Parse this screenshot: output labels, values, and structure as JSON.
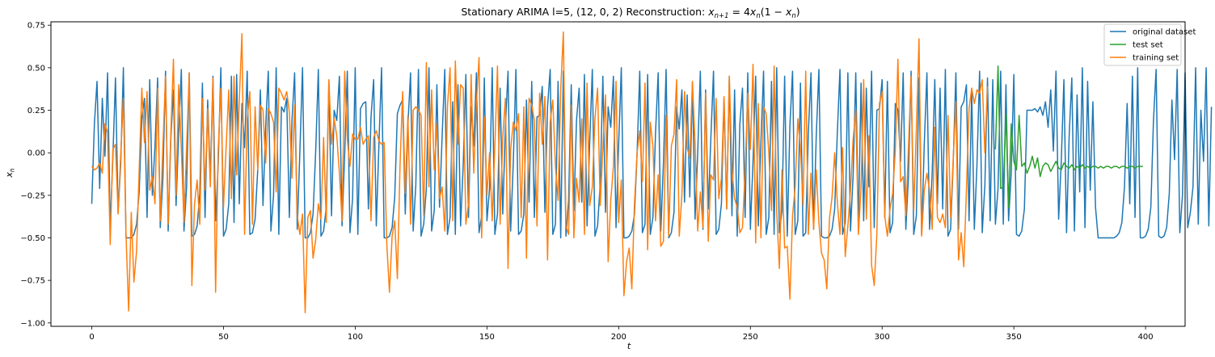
{
  "chart_data": {
    "type": "line",
    "title": "Stationary ARIMA l=5, (12, 0, 2) Reconstruction: x_{n+1} = 4x_n(1 − x_n)",
    "title_parts": {
      "prefix": "Stationary ARIMA l=5, (12, 0, 2) Reconstruction: ",
      "formula_x": "x",
      "formula_sub": "n+1",
      "formula_mid": " = 4",
      "formula_x2": "x",
      "formula_sub2": "n",
      "formula_paren_open": "(1 − ",
      "formula_x3": "x",
      "formula_sub3": "n",
      "formula_paren_close": ")"
    },
    "xlabel": "t",
    "ylabel": "x",
    "ylabel_sub": "n",
    "xlim": [
      -15.5,
      415
    ],
    "ylim": [
      -1.02,
      0.77
    ],
    "xticks": [
      0,
      50,
      100,
      150,
      200,
      250,
      300,
      350,
      400
    ],
    "yticks": [
      -1.0,
      -0.75,
      -0.5,
      -0.25,
      0.0,
      0.25,
      0.5,
      0.75
    ],
    "ytick_labels": [
      "−1.00",
      "−0.75",
      "−0.50",
      "−0.25",
      "0.00",
      "0.25",
      "0.50",
      "0.75"
    ],
    "grid": false,
    "legend_position": "upper right",
    "series": [
      {
        "name": "original dataset",
        "color": "#1f77b4",
        "x_start": 0,
        "values": [
          -0.3,
          0.17,
          0.42,
          -0.21,
          0.32,
          -0.02,
          0.47,
          -0.44,
          -0.03,
          0.44,
          -0.35,
          -0.06,
          0.5,
          -0.5,
          -0.5,
          -0.5,
          -0.48,
          -0.42,
          -0.23,
          0.2,
          0.32,
          -0.38,
          0.43,
          -0.25,
          0.04,
          0.44,
          -0.44,
          -0.15,
          0.48,
          -0.46,
          0.08,
          0.37,
          -0.31,
          0.11,
          0.49,
          -0.46,
          -0.2,
          0.47,
          -0.49,
          -0.48,
          -0.43,
          -0.24,
          0.41,
          -0.38,
          0.31,
          -0.15,
          0.45,
          -0.4,
          -0.06,
          0.5,
          -0.49,
          -0.45,
          -0.3,
          0.45,
          -0.41,
          0.46,
          -0.3,
          0.29,
          0.03,
          0.48,
          -0.48,
          -0.47,
          -0.39,
          -0.1,
          0.37,
          -0.31,
          0.15,
          0.48,
          -0.46,
          -0.25,
          0.5,
          -0.48,
          0.27,
          0.24,
          0.32,
          -0.38,
          0.19,
          0.47,
          -0.45,
          0.01,
          0.5,
          -0.5,
          -0.5,
          -0.47,
          -0.36,
          0.01,
          0.49,
          -0.49,
          -0.46,
          -0.32,
          0.42,
          -0.37,
          0.25,
          0.19,
          0.45,
          -0.43,
          -0.01,
          0.48,
          -0.47,
          -0.27,
          0.5,
          -0.48,
          0.26,
          0.29,
          0.3,
          -0.33,
          0.21,
          0.43,
          -0.43,
          0.05,
          0.5,
          -0.5,
          -0.5,
          -0.49,
          -0.44,
          -0.26,
          0.23,
          0.28,
          0.31,
          -0.36,
          0.16,
          0.47,
          -0.46,
          -0.19,
          0.49,
          -0.49,
          -0.42,
          -0.21,
          0.5,
          -0.46,
          -0.34,
          0.4,
          -0.32,
          0.1,
          0.49,
          -0.48,
          -0.38,
          0.3,
          -0.48,
          0.4,
          -0.43,
          -0.07,
          0.46,
          -0.38,
          0.27,
          0.04,
          0.47,
          -0.47,
          -0.37,
          0.44,
          -0.4,
          -0.21,
          0.5,
          -0.48,
          -0.36,
          0.38,
          -0.36,
          0.15,
          0.48,
          -0.46,
          -0.06,
          0.49,
          -0.48,
          -0.46,
          -0.36,
          0.31,
          -0.29,
          0.42,
          -0.38,
          0.21,
          0.22,
          0.39,
          -0.35,
          0.27,
          0.49,
          -0.48,
          -0.42,
          0.42,
          -0.5,
          0.48,
          -0.49,
          -0.28,
          0.4,
          -0.34,
          0.19,
          0.38,
          -0.29,
          0.46,
          -0.43,
          0.06,
          0.49,
          -0.49,
          -0.43,
          -0.18,
          0.45,
          -0.35,
          0.27,
          0.15,
          0.45,
          -0.44,
          0.05,
          0.5,
          -0.5,
          -0.5,
          -0.49,
          -0.46,
          -0.36,
          0.0,
          0.48,
          -0.47,
          -0.42,
          0.46,
          -0.48,
          -0.38,
          0.12,
          0.47,
          -0.46,
          -0.06,
          0.49,
          -0.5,
          -0.47,
          -0.35,
          0.27,
          0.14,
          0.37,
          -0.29,
          0.34,
          -0.26,
          0.41,
          -0.39,
          0.0,
          0.48,
          -0.45,
          0.37,
          -0.33,
          0.09,
          0.48,
          -0.48,
          -0.45,
          -0.3,
          0.32,
          -0.33,
          0.45,
          -0.37,
          0.37,
          -0.49,
          0.17,
          0.38,
          -0.38,
          0.47,
          -0.45,
          -0.05,
          0.45,
          -0.43,
          0.06,
          0.48,
          -0.48,
          -0.38,
          0.42,
          -0.48,
          0.5,
          -0.47,
          -0.34,
          0.45,
          -0.49,
          0.16,
          0.48,
          -0.48,
          -0.4,
          0.41,
          -0.49,
          -0.47,
          0.12,
          0.47,
          -0.45,
          0.1,
          0.49,
          -0.49,
          -0.5,
          -0.5,
          -0.49,
          -0.45,
          -0.33,
          0.12,
          0.49,
          -0.48,
          -0.41,
          0.47,
          -0.46,
          -0.13,
          0.47,
          -0.44,
          0.41,
          -0.4,
          0.38,
          -0.2,
          0.48,
          -0.44,
          0.25,
          0.26,
          0.43,
          -0.38,
          0.42,
          -0.47,
          -0.41,
          0.29,
          0.25,
          -0.05,
          0.47,
          -0.45,
          -0.14,
          0.48,
          -0.48,
          -0.37,
          0.44,
          -0.48,
          0.05,
          0.47,
          -0.45,
          -0.12,
          0.43,
          -0.3,
          0.38,
          -0.33,
          0.49,
          -0.49,
          -0.45,
          -0.05,
          0.47,
          -0.45,
          0.27,
          0.3,
          0.4,
          -0.4,
          0.36,
          -0.45,
          -0.07,
          0.48,
          -0.47,
          -0.19,
          0.44,
          -0.4,
          0.43,
          -0.42,
          -0.21,
          0.48,
          -0.42,
          0.4,
          -0.4,
          -0.12,
          0.46,
          -0.48,
          -0.49,
          -0.46,
          -0.33,
          0.25,
          0.25,
          0.25,
          0.26,
          0.24,
          0.27,
          0.22,
          0.3,
          0.15,
          0.37,
          0.01,
          0.48,
          -0.39,
          -0.05,
          0.43,
          -0.47,
          0.1,
          0.44,
          -0.46,
          0.34,
          -0.23,
          0.5,
          -0.44,
          0.42,
          -0.22,
          0.3,
          -0.32,
          -0.5,
          -0.5,
          -0.5,
          -0.5,
          -0.5,
          -0.5,
          -0.5,
          -0.49,
          -0.47,
          -0.41,
          -0.2,
          0.29,
          -0.3,
          0.45,
          -0.38,
          0.5,
          -0.5,
          -0.5,
          -0.49,
          -0.45,
          -0.32,
          0.19,
          0.49,
          -0.49,
          -0.5,
          -0.49,
          -0.44,
          -0.24,
          0.31,
          -0.04,
          0.49,
          -0.47,
          -0.25,
          0.47,
          -0.44,
          -0.35,
          -0.2,
          0.5,
          -0.42,
          0.25,
          -0.05,
          0.5,
          -0.43,
          0.27
        ]
      },
      {
        "name": "test set",
        "color": "#2ca02c",
        "x_start": 343,
        "values": [
          0.02,
          0.51,
          -0.21,
          -0.2,
          0.23,
          -0.32,
          0.17,
          -0.05,
          -0.1,
          0.22,
          -0.08,
          -0.06,
          -0.12,
          -0.08,
          -0.02,
          -0.09,
          -0.03,
          -0.14,
          -0.08,
          -0.06,
          -0.07,
          -0.11,
          -0.08,
          -0.05,
          -0.09,
          -0.1,
          -0.06,
          -0.08,
          -0.09,
          -0.07,
          -0.1,
          -0.08,
          -0.09,
          -0.07,
          -0.09,
          -0.08,
          -0.09,
          -0.08,
          -0.08,
          -0.09,
          -0.08,
          -0.09,
          -0.08,
          -0.08,
          -0.09,
          -0.08,
          -0.08,
          -0.09,
          -0.08,
          -0.08,
          -0.09,
          -0.08,
          -0.08,
          -0.09,
          -0.08,
          -0.08,
          -0.08
        ]
      },
      {
        "name": "training set",
        "color": "#ff7f0e",
        "x_start": 0,
        "values": [
          -0.08,
          -0.1,
          -0.09,
          -0.06,
          -0.12,
          0.17,
          0.12,
          -0.54,
          0.02,
          0.05,
          -0.36,
          -0.01,
          0.32,
          -0.48,
          -0.93,
          -0.35,
          -0.76,
          -0.58,
          -0.1,
          0.38,
          0.06,
          0.36,
          -0.22,
          -0.14,
          -0.3,
          0.38,
          -0.4,
          0.04,
          0.45,
          -0.42,
          0.11,
          0.55,
          -0.25,
          0.4,
          0.02,
          -0.41,
          0.03,
          0.47,
          -0.78,
          -0.3,
          -0.16,
          -0.42,
          0.32,
          -0.22,
          0.26,
          -0.2,
          0.44,
          -0.82,
          0.02,
          0.38,
          -0.32,
          0.03,
          0.37,
          -0.27,
          0.45,
          -0.13,
          0.31,
          0.7,
          -0.48,
          0.2,
          0.36,
          -0.42,
          0.27,
          -0.1,
          0.28,
          0.25,
          -0.06,
          0.26,
          0.23,
          0.18,
          -0.23,
          0.38,
          0.35,
          0.31,
          0.36,
          0.24,
          -0.15,
          0.28,
          -0.37,
          -0.48,
          -0.36,
          -0.94,
          -0.38,
          -0.34,
          -0.62,
          -0.51,
          -0.3,
          -0.39,
          0.09,
          -0.41,
          0.43,
          0.05,
          0.2,
          0.1,
          -0.12,
          -0.4,
          0.48,
          0.08,
          -0.08,
          0.11,
          0.08,
          0.08,
          0.15,
          0.05,
          0.08,
          0.1,
          -0.4,
          0.09,
          0.13,
          0.07,
          0.05,
          0.06,
          -0.54,
          -0.82,
          -0.49,
          -0.4,
          -0.74,
          -0.08,
          0.36,
          -0.24,
          0.22,
          -0.42,
          0.25,
          0.27,
          0.25,
          0.22,
          -0.37,
          0.53,
          -0.2,
          0.37,
          -0.1,
          0.17,
          -0.27,
          -0.2,
          -0.46,
          0.27,
          0.5,
          -0.4,
          0.54,
          0.05,
          0.4,
          0.38,
          -0.42,
          -0.3,
          0.46,
          -0.12,
          0.29,
          0.56,
          -0.5,
          0.21,
          -0.25,
          0.0,
          -0.4,
          0.04,
          0.51,
          -0.42,
          0.09,
          0.32,
          -0.68,
          0.02,
          0.18,
          0.13,
          0.23,
          -0.38,
          0.27,
          -0.62,
          0.32,
          0.28,
          0.19,
          -0.43,
          0.35,
          0.05,
          0.33,
          -0.63,
          0.18,
          0.31,
          -0.08,
          -0.28,
          0.37,
          0.71,
          -0.43,
          -0.48,
          0.28,
          -0.5,
          -0.15,
          -0.29,
          0.2,
          -0.48,
          0.41,
          -0.31,
          -0.2,
          0.2,
          0.38,
          -0.31,
          0.03,
          0.34,
          -0.64,
          -0.28,
          -0.08,
          0.42,
          -0.41,
          -0.16,
          -0.84,
          -0.64,
          -0.56,
          -0.8,
          -0.3,
          0.0,
          0.13,
          -0.17,
          0.41,
          -0.57,
          0.18,
          0.04,
          -0.4,
          -0.13,
          -0.55,
          -0.52,
          0.22,
          -0.49,
          0.04,
          0.11,
          0.43,
          -0.49,
          -0.25,
          0.36,
          0.03,
          -0.03,
          0.42,
          0.05,
          -0.46,
          -0.23,
          -0.44,
          0.35,
          -0.52,
          -0.13,
          -0.16,
          0.32,
          -0.27,
          -0.15,
          0.33,
          -0.33,
          0.45,
          -0.1,
          -0.27,
          -0.32,
          -0.47,
          -0.44,
          -0.11,
          0.35,
          0.02,
          0.52,
          -0.53,
          0.29,
          -0.5,
          0.27,
          0.23,
          0.0,
          -0.34,
          0.51,
          -0.35,
          -0.68,
          -0.1,
          -0.56,
          -0.55,
          -0.86,
          -0.37,
          -0.2,
          0.2,
          0.02,
          -0.31,
          0.48,
          -0.48,
          -0.12,
          -0.45,
          -0.1,
          -0.41,
          -0.59,
          -0.63,
          -0.8,
          -0.39,
          -0.26,
          0.0,
          -0.29,
          -0.48,
          0.03,
          -0.61,
          -0.43,
          -0.22,
          0.08,
          0.25,
          -0.48,
          -0.21,
          0.43,
          -0.39,
          0.1,
          -0.66,
          -0.78,
          -0.48,
          0.29,
          0.36,
          -0.37,
          -0.49,
          -0.33,
          -0.24,
          0.01,
          0.55,
          -0.17,
          -0.14,
          -0.37,
          0.03,
          0.45,
          -0.34,
          0.14,
          0.67,
          -0.49,
          -0.22,
          -0.12,
          -0.22,
          -0.45,
          0.15,
          -0.38,
          -0.41,
          -0.36,
          -0.44,
          0.22,
          -0.38,
          -0.03,
          0.3,
          -0.63,
          -0.47,
          -0.67,
          -0.22,
          0.26,
          0.38,
          0.29,
          0.37,
          0.35,
          0.43,
          0.0,
          0.39
        ]
      }
    ]
  }
}
